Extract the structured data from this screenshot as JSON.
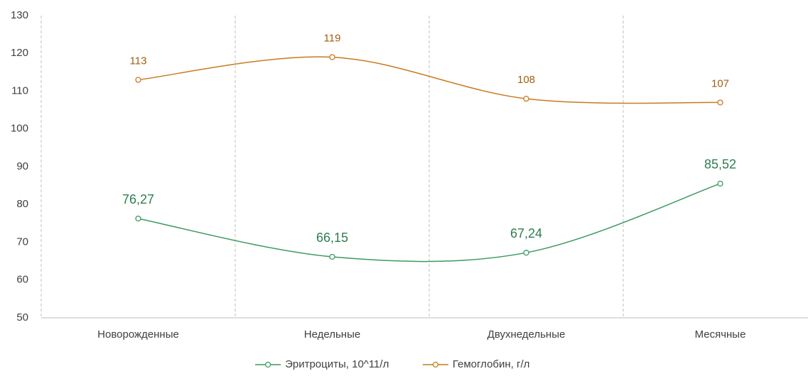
{
  "chart_data": {
    "type": "line",
    "categories": [
      "Новорожденные",
      "Недельные",
      "Двухнедельные",
      "Месячные"
    ],
    "series": [
      {
        "name": "Эритроциты, 10^11/л",
        "color": "#3a9a5e",
        "label_color": "#2e7d4f",
        "values": [
          76.27,
          66.15,
          67.24,
          85.52
        ],
        "value_labels": [
          "76,27",
          "66,15",
          "67,24",
          "85,52"
        ]
      },
      {
        "name": "Гемоглобин, г/л",
        "color": "#c97a1e",
        "label_color": "#a35d10",
        "values": [
          113,
          119,
          108,
          107
        ]
      }
    ],
    "ylim": [
      50,
      130
    ],
    "yticks": [
      50,
      60,
      70,
      80,
      90,
      100,
      110,
      120,
      130
    ],
    "smooth": true,
    "legend": "bottom"
  }
}
